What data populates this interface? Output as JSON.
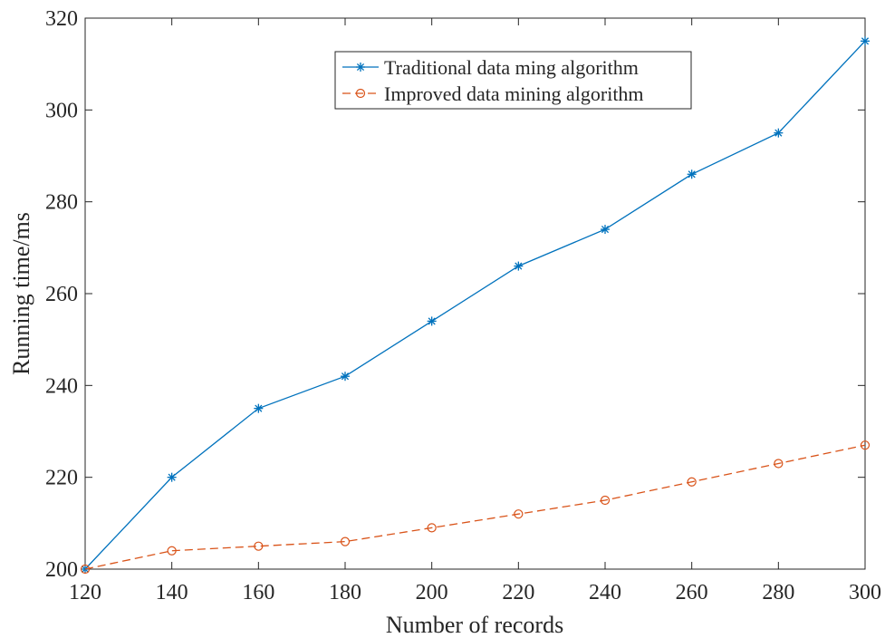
{
  "chart_data": {
    "type": "line",
    "title": "",
    "xlabel": "Number of records",
    "ylabel": "Running time/ms",
    "xlim": [
      120,
      300
    ],
    "ylim": [
      200,
      320
    ],
    "x": [
      120,
      140,
      160,
      180,
      200,
      220,
      240,
      260,
      280,
      300
    ],
    "xticks": [
      "120",
      "140",
      "160",
      "180",
      "200",
      "220",
      "240",
      "260",
      "280",
      "300"
    ],
    "yticks": [
      "200",
      "220",
      "240",
      "260",
      "280",
      "300",
      "320"
    ],
    "grid": false,
    "legend_position": "top-right",
    "series": [
      {
        "name": "Traditional data ming algorithm",
        "values": [
          200,
          220,
          235,
          242,
          254,
          266,
          274,
          286,
          295,
          315
        ],
        "color": "#0072BD",
        "line_style": "solid",
        "marker": "asterisk"
      },
      {
        "name": "Improved data mining algorithm",
        "values": [
          200,
          204,
          205,
          206,
          209,
          212,
          215,
          219,
          223,
          227
        ],
        "color": "#D95319",
        "line_style": "dashed",
        "marker": "circle"
      }
    ]
  }
}
